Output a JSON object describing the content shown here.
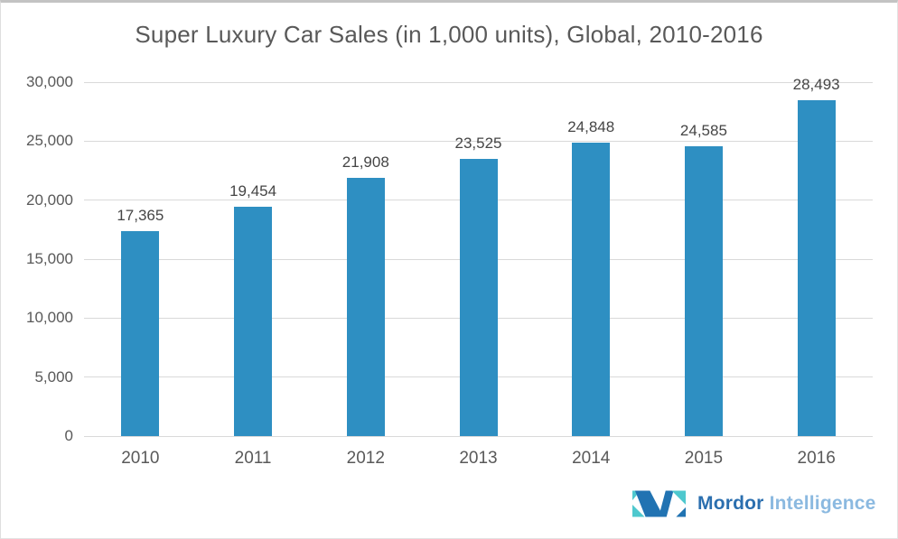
{
  "chart_data": {
    "type": "bar",
    "title": "Super Luxury Car Sales (in 1,000 units), Global, 2010-2016",
    "categories": [
      "2010",
      "2011",
      "2012",
      "2013",
      "2014",
      "2015",
      "2016"
    ],
    "values": [
      17365,
      19454,
      21908,
      23525,
      24848,
      24585,
      28493
    ],
    "value_labels": [
      "17,365",
      "19,454",
      "21,908",
      "23,525",
      "24,848",
      "24,585",
      "28,493"
    ],
    "xlabel": "",
    "ylabel": "",
    "ylim": [
      0,
      30000
    ],
    "yticks": [
      0,
      5000,
      10000,
      15000,
      20000,
      25000,
      30000
    ],
    "ytick_labels": [
      "0",
      "5,000",
      "10,000",
      "15,000",
      "20,000",
      "25,000",
      "30,000"
    ],
    "grid": true,
    "legend": false,
    "bar_color": "#2E8FC2"
  },
  "branding": {
    "primary": "Mordor",
    "secondary": "Intelligence",
    "primary_color": "#2B6FAF",
    "secondary_color": "#8BB9E0",
    "mark_blue": "#2173B2",
    "mark_teal": "#4EC8CE"
  },
  "colors": {
    "bar": "#2E8FC2",
    "grid": "#D9D9D9",
    "title_text": "#595959",
    "value_label_text": "#454545",
    "axis_text": "#595959",
    "background": "#FFFFFF"
  }
}
